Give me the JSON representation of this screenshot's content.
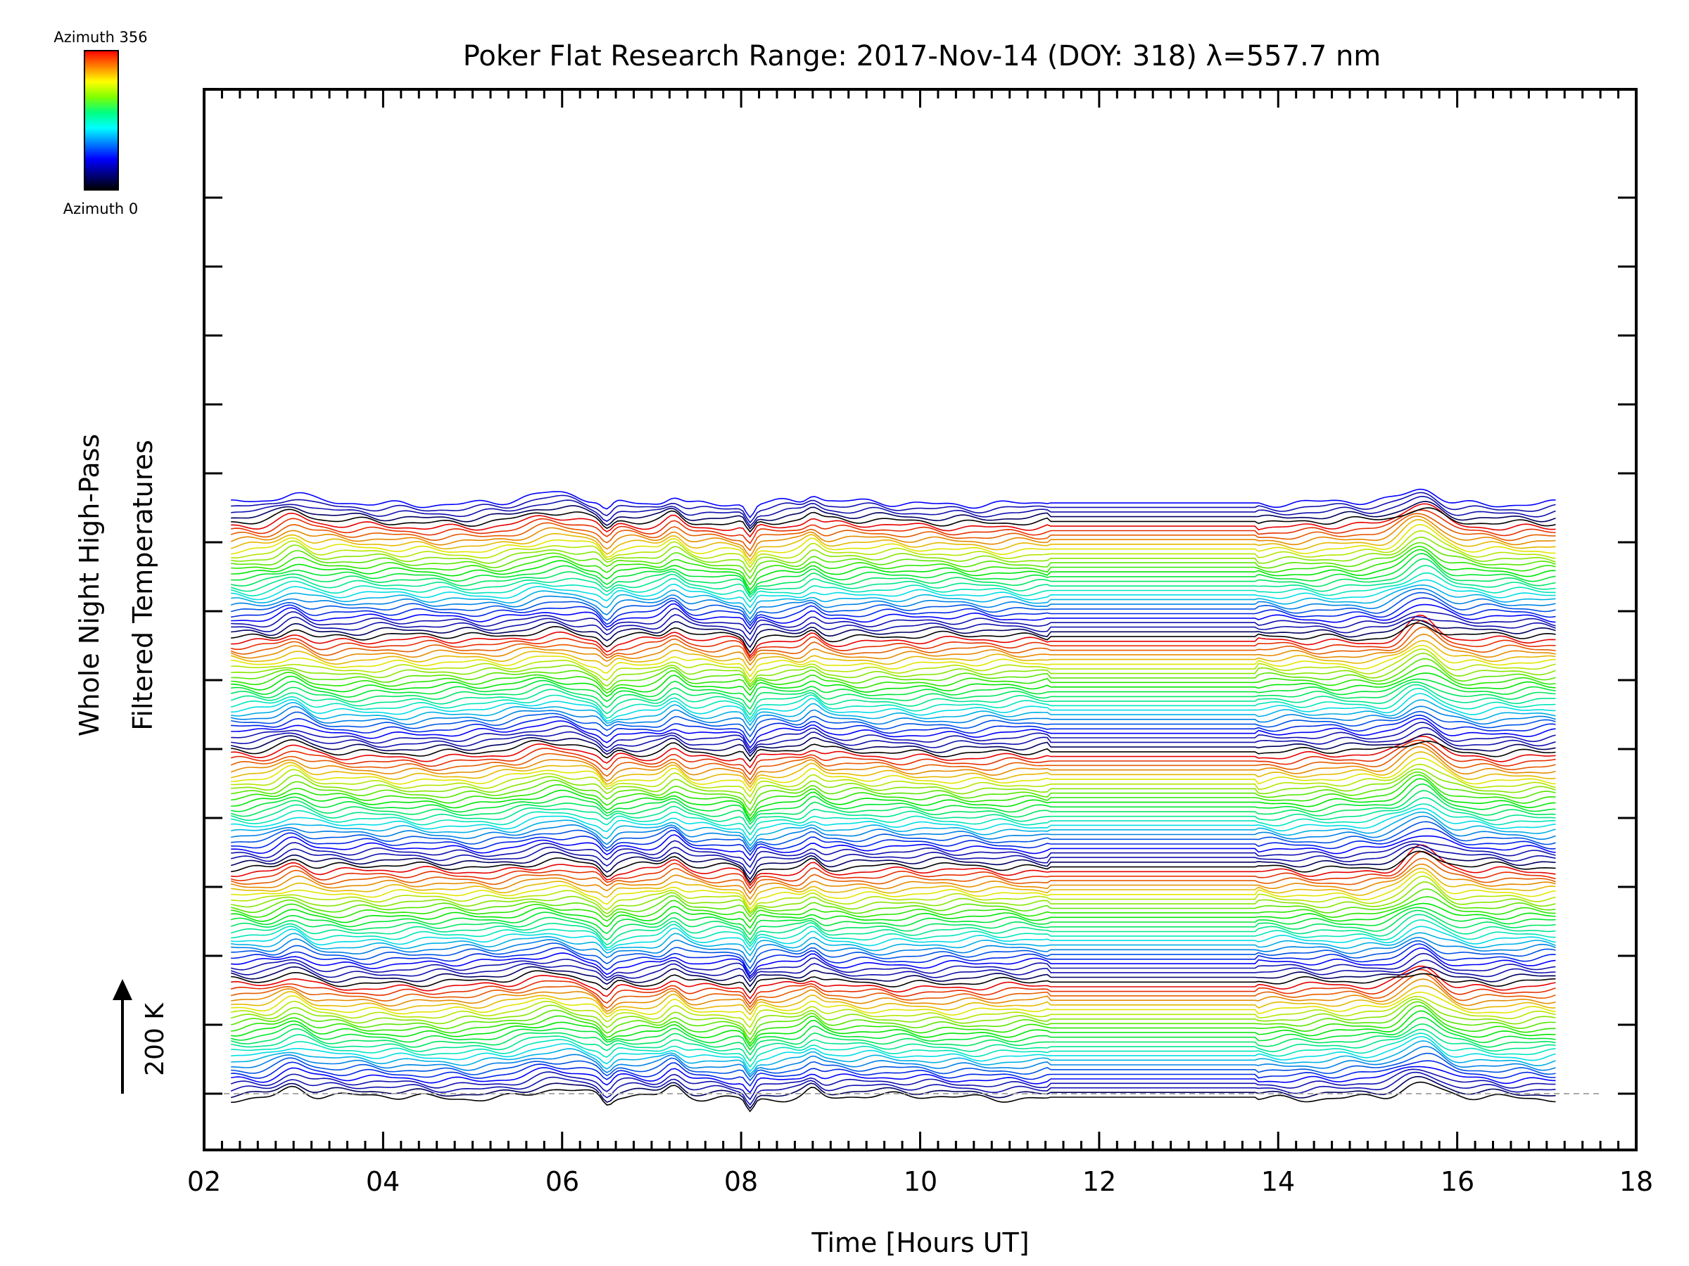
{
  "chart_data": {
    "type": "line",
    "title": "Poker Flat Research Range: 2017-Nov-14 (DOY: 318) λ=557.7 nm",
    "xlabel": "Time [Hours UT]",
    "ylabel_line1": "Whole Night High-Pass",
    "ylabel_line2": "Filtered Temperatures",
    "xlim": [
      2,
      18
    ],
    "xticks": [
      "02",
      "04",
      "06",
      "08",
      "10",
      "12",
      "14",
      "16",
      "18"
    ],
    "x_range_of_data": [
      2.3,
      17.1
    ],
    "trace_count": 130,
    "stacked": true,
    "legend": {
      "type": "colorbar",
      "placement": "top-left",
      "top_label": "Azimuth 356",
      "bottom_label": "Azimuth 0",
      "colors": [
        "#ff0000",
        "#ff8000",
        "#ffff00",
        "#80ff00",
        "#00ff80",
        "#00ffff",
        "#0080ff",
        "#0000ff",
        "#000080",
        "#000000"
      ]
    },
    "scale_bar": {
      "label": "200 K"
    },
    "colormap": "rainbow",
    "features": [
      {
        "x": 3.0,
        "amplitude": 1.0,
        "width": 0.18
      },
      {
        "x": 5.9,
        "amplitude": 0.9,
        "width": 0.4
      },
      {
        "x": 6.5,
        "amplitude": -1.0,
        "width": 0.08
      },
      {
        "x": 7.25,
        "amplitude": 1.0,
        "width": 0.12
      },
      {
        "x": 8.1,
        "amplitude": -1.4,
        "width": 0.06
      },
      {
        "x": 8.8,
        "amplitude": 0.8,
        "width": 0.1
      },
      {
        "x": 15.6,
        "amplitude": 2.6,
        "width": 0.25
      }
    ],
    "flat_segment": [
      11.4,
      13.8
    ]
  }
}
